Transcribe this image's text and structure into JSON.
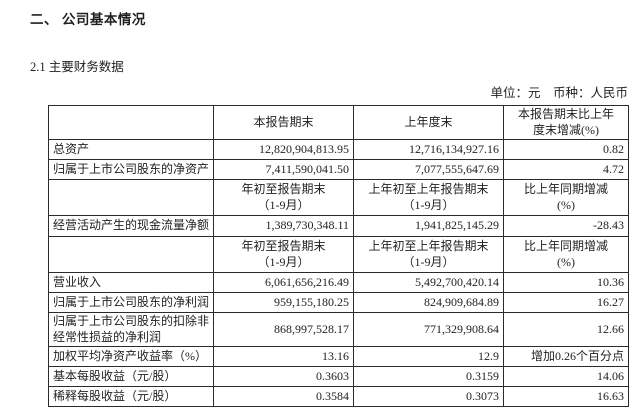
{
  "page": {
    "section_title": "二、 公司基本情况",
    "subsection_title": "2.1 主要财务数据",
    "unit_line": "单位：元　币种：人民币"
  },
  "table": {
    "header": {
      "label": "",
      "current": "本报告期末",
      "prior": "上年度末",
      "change": "本报告期末比上年\n度末增减(%)"
    },
    "rows": [
      {
        "kind": "data",
        "label": "总资产",
        "current": "12,820,904,813.95",
        "prior": "12,716,134,927.16",
        "change": "0.82"
      },
      {
        "kind": "data",
        "label": "归属于上市公司股东的净资产",
        "current": "7,411,590,041.50",
        "prior": "7,077,555,647.69",
        "change": "4.72"
      },
      {
        "kind": "subheader",
        "label": "",
        "current": "年初至报告期末\n（1-9月）",
        "prior": "上年初至上年报告期末\n（1-9月）",
        "change": "比上年同期增减\n(%)"
      },
      {
        "kind": "data",
        "label": "经营活动产生的现金流量净额",
        "current": "1,389,730,348.11",
        "prior": "1,941,825,145.29",
        "change": "-28.43"
      },
      {
        "kind": "subheader",
        "label": "",
        "current": "年初至报告期末\n（1-9月）",
        "prior": "上年初至上年报告期末\n（1-9月）",
        "change": "比上年同期增减\n(%)"
      },
      {
        "kind": "data",
        "label": "营业收入",
        "current": "6,061,656,216.49",
        "prior": "5,492,700,420.14",
        "change": "10.36"
      },
      {
        "kind": "data",
        "label": "归属于上市公司股东的净利润",
        "current": "959,155,180.25",
        "prior": "824,909,684.89",
        "change": "16.27"
      },
      {
        "kind": "data",
        "label": "归属于上市公司股东的扣除非经常性损益的净利润",
        "current": "868,997,528.17",
        "prior": "771,329,908.64",
        "change": "12.66"
      },
      {
        "kind": "data",
        "label": "加权平均净资产收益率（%）",
        "current": "13.16",
        "prior": "12.9",
        "change": "增加0.26个百分点"
      },
      {
        "kind": "data",
        "label": "基本每股收益（元/股）",
        "current": "0.3603",
        "prior": "0.3159",
        "change": "14.06"
      },
      {
        "kind": "data",
        "label": "稀释每股收益（元/股）",
        "current": "0.3584",
        "prior": "0.3073",
        "change": "16.63"
      }
    ]
  }
}
